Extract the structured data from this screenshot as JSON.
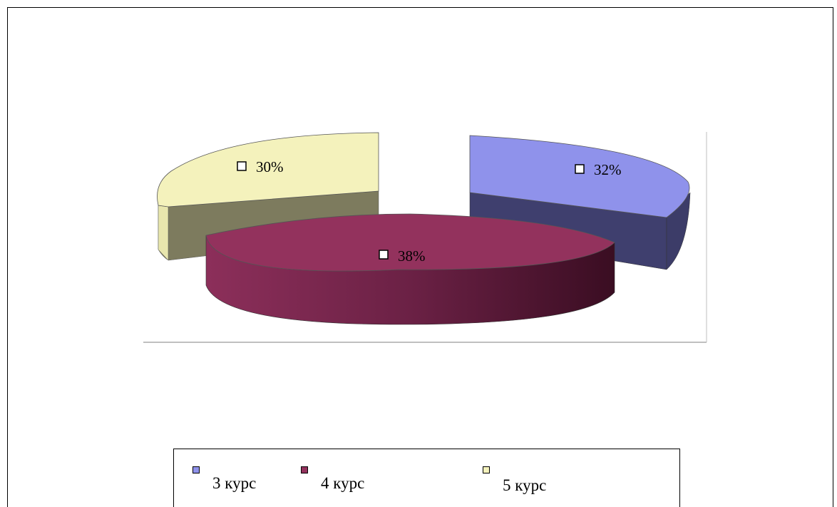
{
  "chart_data": {
    "type": "pie",
    "style": "3d-exploded",
    "categories": [
      "3 курс",
      "4 курс",
      "5 курс"
    ],
    "values": [
      32,
      38,
      30
    ],
    "labels": [
      "32%",
      "38%",
      "30%"
    ],
    "colors": [
      "#8f92eb",
      "#93325d",
      "#f4f2bc"
    ],
    "legend_position": "bottom",
    "title": "",
    "xlabel": "",
    "ylabel": ""
  }
}
